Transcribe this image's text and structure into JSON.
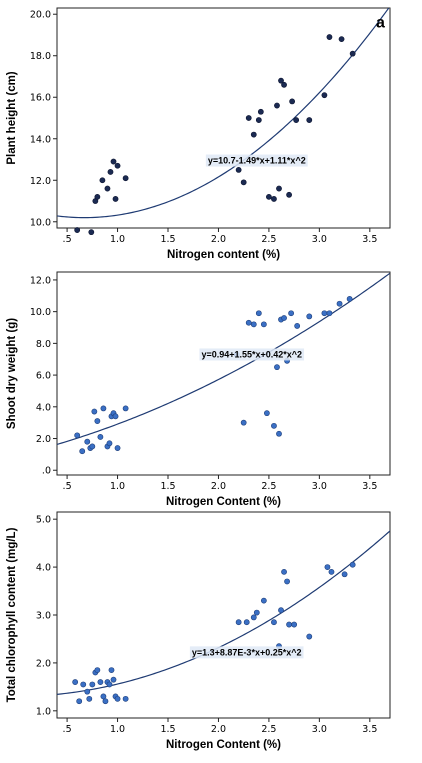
{
  "chart_data": [
    {
      "type": "scatter",
      "panel_label": "a",
      "xlabel": "Nitrogen content (%)",
      "ylabel": "Plant height (cm)",
      "xlim": [
        0.4,
        3.7
      ],
      "ylim": [
        9.7,
        20.3
      ],
      "xticks": [
        ".5",
        "1.0",
        "1.5",
        "2.0",
        "2.5",
        "3.0",
        "3.5"
      ],
      "xtick_values": [
        0.5,
        1.0,
        1.5,
        2.0,
        2.5,
        3.0,
        3.5
      ],
      "yticks": [
        "10.0",
        "12.0",
        "14.0",
        "16.0",
        "18.0",
        "20.0"
      ],
      "ytick_values": [
        10,
        12,
        14,
        16,
        18,
        20
      ],
      "fit_equation": "y=10.7-1.49*x+1.11*x^2",
      "fit_coefficients": [
        10.7,
        -1.49,
        1.11
      ],
      "marker_fill": "#1b2a52",
      "marker_stroke": "#0d1530",
      "line_color": "#1f3b73",
      "x": [
        0.6,
        0.74,
        0.78,
        0.8,
        0.85,
        0.9,
        0.93,
        0.96,
        0.98,
        1.0,
        1.08,
        2.2,
        2.25,
        2.3,
        2.35,
        2.4,
        2.42,
        2.5,
        2.55,
        2.58,
        2.6,
        2.62,
        2.65,
        2.7,
        2.73,
        2.77,
        2.9,
        3.05,
        3.1,
        3.22,
        3.33
      ],
      "y": [
        9.6,
        9.5,
        11.0,
        11.2,
        12.0,
        11.6,
        12.4,
        12.9,
        11.1,
        12.7,
        12.1,
        12.5,
        11.9,
        15.0,
        14.2,
        14.9,
        15.3,
        11.2,
        11.1,
        15.6,
        11.6,
        16.8,
        16.6,
        11.3,
        15.8,
        14.9,
        14.9,
        16.1,
        18.9,
        18.8,
        18.1
      ]
    },
    {
      "type": "scatter",
      "xlabel": "Nitrogen Content (%)",
      "ylabel": "Shoot dry weight (g)",
      "xlim": [
        0.4,
        3.7
      ],
      "ylim": [
        -0.3,
        12.5
      ],
      "xticks": [
        ".5",
        "1.0",
        "1.5",
        "2.0",
        "2.5",
        "3.0",
        "3.5"
      ],
      "xtick_values": [
        0.5,
        1.0,
        1.5,
        2.0,
        2.5,
        3.0,
        3.5
      ],
      "yticks": [
        ".0",
        "2.0",
        "4.0",
        "6.0",
        "8.0",
        "10.0",
        "12.0"
      ],
      "ytick_values": [
        0,
        2,
        4,
        6,
        8,
        10,
        12
      ],
      "fit_equation": "y=0.94+1.55*x+0.42*x^2",
      "fit_coefficients": [
        0.94,
        1.55,
        0.42
      ],
      "marker_fill": "#3a6fc4",
      "marker_stroke": "#1f3f7a",
      "line_color": "#1f3b73",
      "x": [
        0.6,
        0.65,
        0.7,
        0.73,
        0.75,
        0.77,
        0.8,
        0.83,
        0.86,
        0.9,
        0.92,
        0.94,
        0.96,
        0.98,
        1.0,
        1.08,
        2.18,
        2.25,
        2.3,
        2.35,
        2.4,
        2.45,
        2.48,
        2.55,
        2.58,
        2.6,
        2.62,
        2.65,
        2.68,
        2.72,
        2.78,
        2.9,
        3.05,
        3.1,
        3.2,
        3.3
      ],
      "y": [
        2.2,
        1.2,
        1.8,
        1.4,
        1.5,
        3.7,
        3.1,
        2.1,
        3.9,
        1.5,
        1.7,
        3.4,
        3.6,
        3.4,
        1.4,
        3.9,
        7.3,
        3.0,
        9.3,
        9.2,
        9.9,
        9.2,
        3.6,
        2.8,
        6.5,
        2.3,
        9.5,
        9.6,
        6.9,
        9.9,
        9.1,
        9.7,
        9.9,
        9.9,
        10.5,
        10.8
      ]
    },
    {
      "type": "scatter",
      "xlabel": "Nitrogen Content (%)",
      "ylabel": "Total chlorophyll content (mg/L)",
      "xlim": [
        0.4,
        3.7
      ],
      "ylim": [
        0.85,
        5.15
      ],
      "xticks": [
        ".5",
        "1.0",
        "1.5",
        "2.0",
        "2.5",
        "3.0",
        "3.5"
      ],
      "xtick_values": [
        0.5,
        1.0,
        1.5,
        2.0,
        2.5,
        3.0,
        3.5
      ],
      "yticks": [
        "1.0",
        "2.0",
        "3.0",
        "4.0",
        "5.0"
      ],
      "ytick_values": [
        1,
        2,
        3,
        4,
        5
      ],
      "fit_equation": "y=1.3+8.87E-3*x+0.25*x^2",
      "fit_coefficients": [
        1.3,
        0.00887,
        0.25
      ],
      "marker_fill": "#3a6fc4",
      "marker_stroke": "#1f3f7a",
      "line_color": "#1f3b73",
      "x": [
        0.58,
        0.62,
        0.66,
        0.7,
        0.72,
        0.75,
        0.78,
        0.8,
        0.83,
        0.86,
        0.88,
        0.9,
        0.92,
        0.94,
        0.96,
        0.98,
        1.0,
        1.08,
        2.2,
        2.28,
        2.35,
        2.38,
        2.45,
        2.55,
        2.6,
        2.62,
        2.65,
        2.68,
        2.7,
        2.75,
        2.9,
        3.08,
        3.12,
        3.25,
        3.33
      ],
      "y": [
        1.6,
        1.2,
        1.55,
        1.4,
        1.25,
        1.55,
        1.8,
        1.85,
        1.6,
        1.3,
        1.2,
        1.6,
        1.55,
        1.85,
        1.65,
        1.3,
        1.25,
        1.25,
        2.85,
        2.85,
        2.95,
        3.05,
        3.3,
        2.85,
        2.35,
        3.1,
        3.9,
        3.7,
        2.8,
        2.8,
        2.55,
        4.0,
        3.9,
        3.85,
        4.05
      ]
    }
  ]
}
